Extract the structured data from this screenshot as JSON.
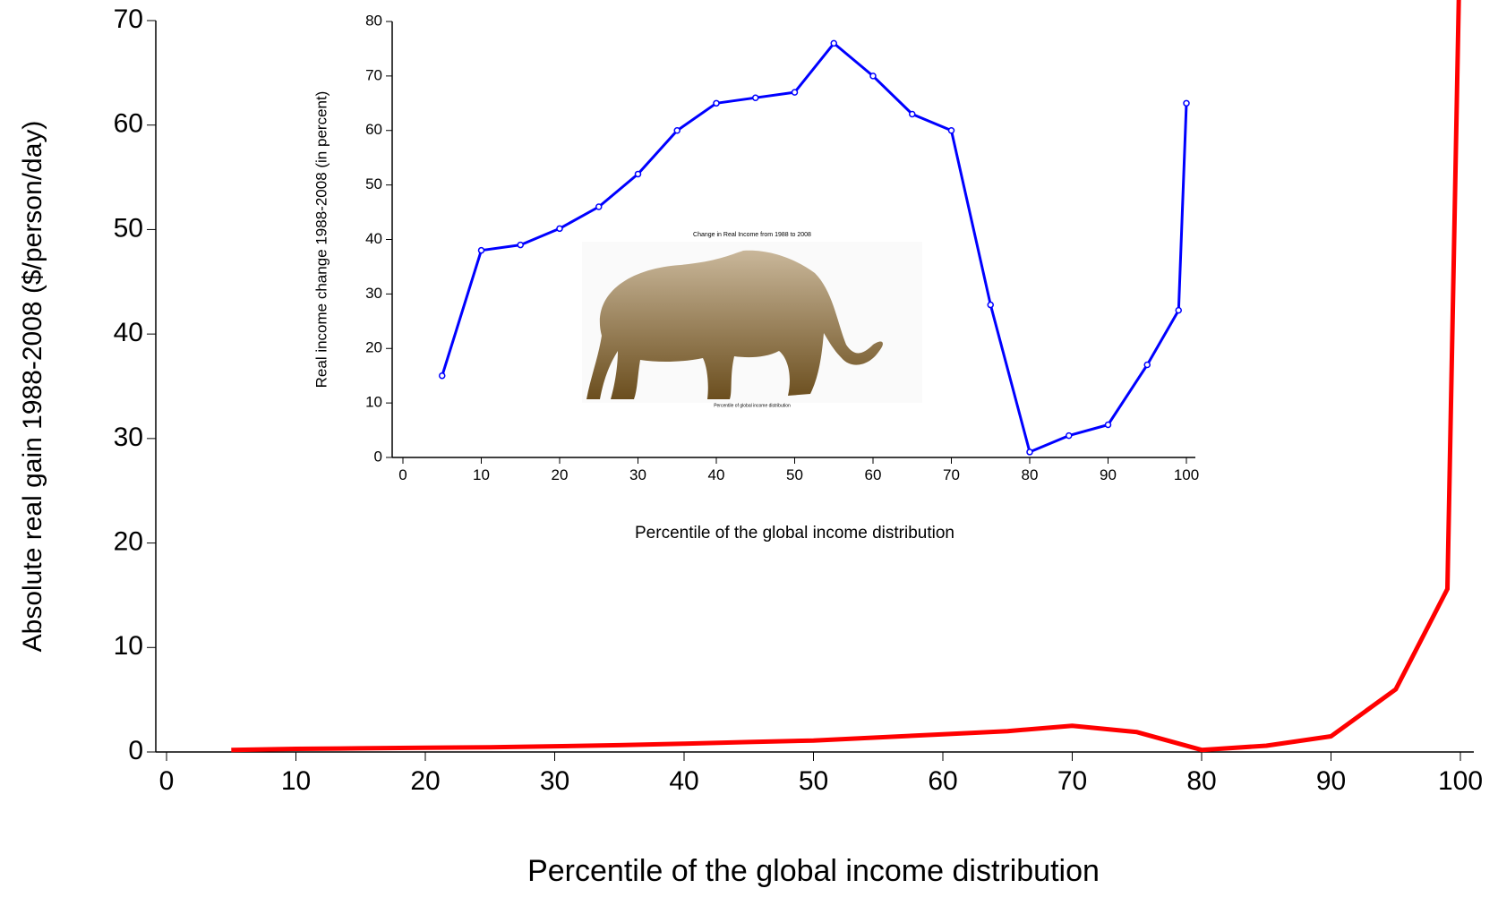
{
  "chart_data": [
    {
      "type": "line",
      "x_label": "Percentile of the global income distribution",
      "y_label": "Absolute real gain 1988-2008 ($/person/day)",
      "xlim": [
        0,
        100
      ],
      "xticks": [
        0,
        10,
        20,
        30,
        40,
        50,
        60,
        70,
        80,
        90,
        100
      ],
      "ylim": [
        0,
        70
      ],
      "yticks": [
        0,
        10,
        20,
        30,
        40,
        50,
        60,
        70
      ],
      "x": [
        5,
        10,
        15,
        20,
        25,
        30,
        35,
        40,
        45,
        50,
        55,
        60,
        65,
        70,
        75,
        80,
        85,
        90,
        95,
        99,
        100
      ],
      "series": [
        {
          "color": "#ff0000",
          "markers": false,
          "values": [
            0.2,
            0.3,
            0.35,
            0.4,
            0.45,
            0.55,
            0.65,
            0.8,
            0.95,
            1.1,
            1.4,
            1.7,
            2.0,
            2.5,
            1.9,
            0.2,
            0.6,
            1.5,
            6.0,
            15.6,
            80
          ]
        }
      ]
    },
    {
      "type": "line",
      "x_label": "Percentile of the global income distribution",
      "y_label": "Real income change 1988-2008 (in percent)",
      "xlim": [
        0,
        100
      ],
      "xticks": [
        0,
        10,
        20,
        30,
        40,
        50,
        60,
        70,
        80,
        90,
        100
      ],
      "ylim": [
        0,
        80
      ],
      "yticks": [
        0,
        10,
        20,
        30,
        40,
        50,
        60,
        70,
        80
      ],
      "x": [
        5,
        10,
        15,
        20,
        25,
        30,
        35,
        40,
        45,
        50,
        55,
        60,
        65,
        70,
        75,
        80,
        85,
        90,
        95,
        99,
        100
      ],
      "series": [
        {
          "color": "#0000ff",
          "markers": true,
          "values": [
            15,
            38,
            39,
            42,
            46,
            52,
            60,
            65,
            66,
            67,
            76,
            70,
            63,
            60,
            28,
            1,
            4,
            6,
            17,
            27,
            65
          ]
        }
      ]
    },
    {
      "type": "picture",
      "title": "Change in Real Income from 1988 to 2008",
      "x_label": "Percentile of global income distribution"
    }
  ]
}
